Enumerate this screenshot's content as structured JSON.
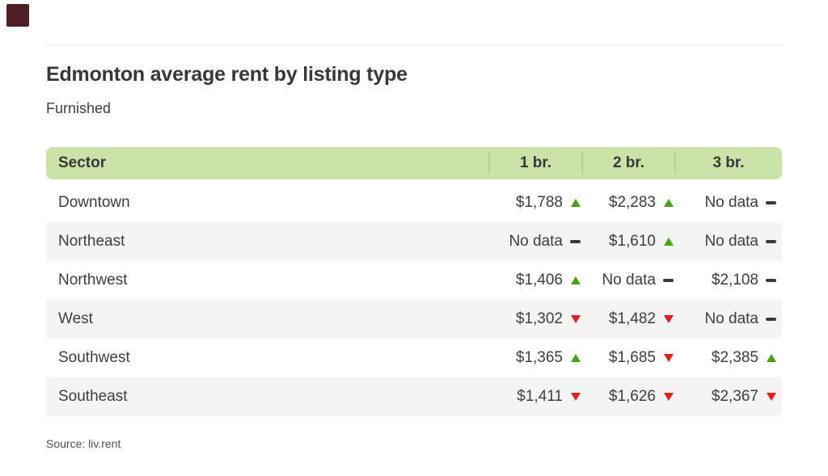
{
  "brand": {
    "logo_color": "#4e1e23"
  },
  "header": {
    "title": "Edmonton average rent by listing type",
    "subtitle": "Furnished"
  },
  "footer": {
    "source": "Source: liv.rent"
  },
  "colors": {
    "header_bg": "#cbe2a9",
    "header_divider": "#b5d48c",
    "row_alt_bg": "#f4f4f4",
    "trend_up": "#44a414",
    "trend_down": "#e32020",
    "trend_flat": "#3a3a3a",
    "text": "#3f3f3f"
  },
  "chart_data": {
    "type": "table",
    "title": "Edmonton average rent by listing type",
    "subtitle": "Furnished",
    "columns": [
      "Sector",
      "1 br.",
      "2 br.",
      "3 br."
    ],
    "rows": [
      {
        "sector": "Downtown",
        "values": [
          "$1,788",
          "$2,283",
          "No data"
        ],
        "trends": [
          "up",
          "up",
          "flat"
        ]
      },
      {
        "sector": "Northeast",
        "values": [
          "No data",
          "$1,610",
          "No data"
        ],
        "trends": [
          "flat",
          "up",
          "flat"
        ]
      },
      {
        "sector": "Northwest",
        "values": [
          "$1,406",
          "No data",
          "$2,108"
        ],
        "trends": [
          "up",
          "flat",
          "flat"
        ]
      },
      {
        "sector": "West",
        "values": [
          "$1,302",
          "$1,482",
          "No data"
        ],
        "trends": [
          "down",
          "down",
          "flat"
        ]
      },
      {
        "sector": "Southwest",
        "values": [
          "$1,365",
          "$1,685",
          "$2,385"
        ],
        "trends": [
          "up",
          "down",
          "up"
        ]
      },
      {
        "sector": "Southeast",
        "values": [
          "$1,411",
          "$1,626",
          "$2,367"
        ],
        "trends": [
          "down",
          "down",
          "down"
        ]
      }
    ],
    "trend_legend": {
      "up": "increase",
      "down": "decrease",
      "flat": "no change"
    },
    "source": "Source: liv.rent"
  }
}
